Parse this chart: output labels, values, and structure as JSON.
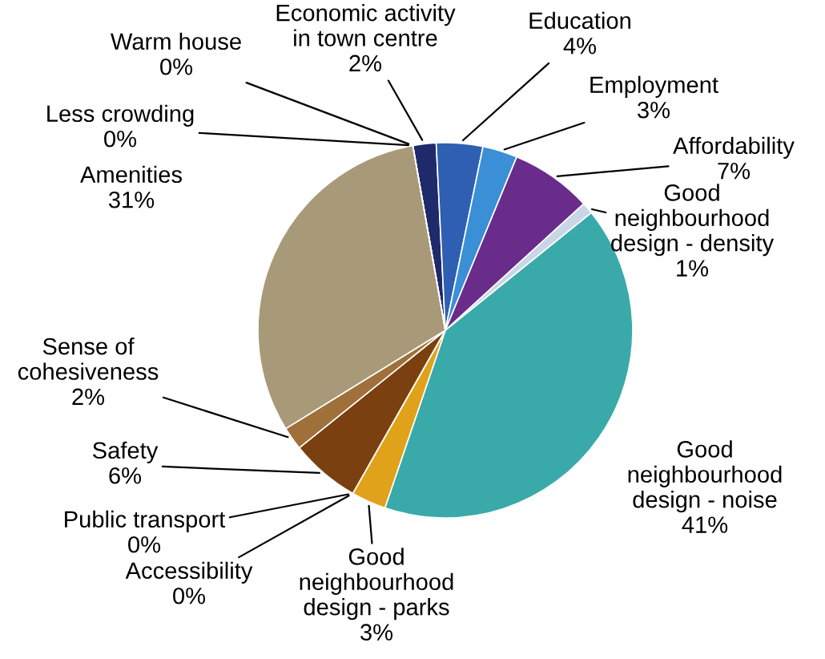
{
  "chart_data": {
    "type": "pie",
    "categories": [
      "Economic activity\nin town centre",
      "Education",
      "Employment",
      "Affordability",
      "Good\nneighbourhood\ndesign - density",
      "Good\nneighbourhood\ndesign - noise",
      "Good\nneighbourhood\ndesign - parks",
      "Accessibility",
      "Public transport",
      "Safety",
      "Sense of\ncohesiveness",
      "Amenities",
      "Less crowding",
      "Warm house"
    ],
    "values": [
      2,
      4,
      3,
      7,
      1,
      41,
      3,
      0,
      0,
      6,
      2,
      31,
      0,
      0
    ],
    "value_labels": [
      "2%",
      "4%",
      "3%",
      "7%",
      "1%",
      "41%",
      "3%",
      "0%",
      "0%",
      "6%",
      "2%",
      "31%",
      "0%",
      "0%"
    ],
    "colors": [
      "#1f2a6b",
      "#2f5fb3",
      "#3a8fd6",
      "#6a2c8a",
      "#c9d6e8",
      "#3aa9a9",
      "#e0a21a",
      "#8aa0c8",
      "#c04040",
      "#7a4010",
      "#a0703a",
      "#a89a78",
      "#606060",
      "#404040"
    ]
  }
}
